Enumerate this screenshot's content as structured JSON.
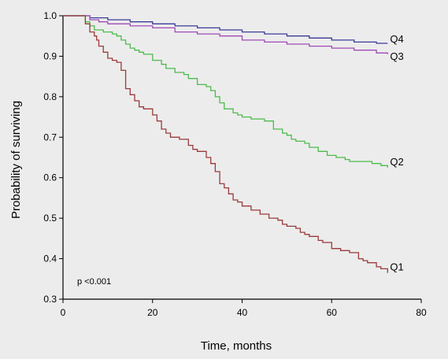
{
  "chart_data": {
    "type": "line",
    "step": true,
    "xlabel": "Time, months",
    "ylabel": "Probability of surviving",
    "xlim": [
      0,
      80
    ],
    "ylim": [
      0.3,
      1.0
    ],
    "xticks": [
      "0",
      "20",
      "40",
      "60",
      "80"
    ],
    "yticks": [
      "0.3",
      "0.4",
      "0.5",
      "0.6",
      "0.7",
      "0.8",
      "0.9",
      "1.0"
    ],
    "grid": false,
    "annotation": "p <0.001",
    "series": [
      {
        "name": "Q4",
        "color": "#3a3a9a",
        "points": [
          [
            0,
            1.0
          ],
          [
            4,
            1.0
          ],
          [
            6,
            0.995
          ],
          [
            10,
            0.99
          ],
          [
            15,
            0.985
          ],
          [
            20,
            0.98
          ],
          [
            25,
            0.975
          ],
          [
            30,
            0.97
          ],
          [
            35,
            0.965
          ],
          [
            40,
            0.96
          ],
          [
            45,
            0.955
          ],
          [
            50,
            0.95
          ],
          [
            55,
            0.945
          ],
          [
            60,
            0.94
          ],
          [
            65,
            0.935
          ],
          [
            70,
            0.932
          ],
          [
            72.5,
            0.932
          ]
        ]
      },
      {
        "name": "Q3",
        "color": "#a04ab8",
        "points": [
          [
            0,
            1.0
          ],
          [
            4,
            1.0
          ],
          [
            6,
            0.99
          ],
          [
            8,
            0.985
          ],
          [
            10,
            0.98
          ],
          [
            15,
            0.975
          ],
          [
            20,
            0.97
          ],
          [
            25,
            0.96
          ],
          [
            30,
            0.955
          ],
          [
            35,
            0.95
          ],
          [
            40,
            0.94
          ],
          [
            45,
            0.935
          ],
          [
            50,
            0.93
          ],
          [
            55,
            0.925
          ],
          [
            60,
            0.92
          ],
          [
            65,
            0.915
          ],
          [
            70,
            0.908
          ],
          [
            72.5,
            0.905
          ]
        ]
      },
      {
        "name": "Q2",
        "color": "#4dbb4d",
        "points": [
          [
            0,
            1.0
          ],
          [
            4,
            1.0
          ],
          [
            5,
            0.985
          ],
          [
            6,
            0.975
          ],
          [
            7,
            0.965
          ],
          [
            9,
            0.96
          ],
          [
            11,
            0.955
          ],
          [
            12,
            0.95
          ],
          [
            13,
            0.94
          ],
          [
            14,
            0.93
          ],
          [
            15,
            0.92
          ],
          [
            16,
            0.915
          ],
          [
            17,
            0.91
          ],
          [
            18,
            0.905
          ],
          [
            20,
            0.89
          ],
          [
            22,
            0.88
          ],
          [
            23,
            0.87
          ],
          [
            25,
            0.86
          ],
          [
            27,
            0.855
          ],
          [
            28,
            0.845
          ],
          [
            30,
            0.83
          ],
          [
            32,
            0.825
          ],
          [
            33,
            0.815
          ],
          [
            34,
            0.8
          ],
          [
            35,
            0.785
          ],
          [
            36,
            0.77
          ],
          [
            38,
            0.76
          ],
          [
            39,
            0.755
          ],
          [
            40,
            0.75
          ],
          [
            42,
            0.745
          ],
          [
            45,
            0.74
          ],
          [
            47,
            0.72
          ],
          [
            49,
            0.71
          ],
          [
            50,
            0.705
          ],
          [
            51,
            0.695
          ],
          [
            52,
            0.69
          ],
          [
            54,
            0.685
          ],
          [
            55,
            0.675
          ],
          [
            57,
            0.665
          ],
          [
            58,
            0.665
          ],
          [
            59,
            0.655
          ],
          [
            60,
            0.655
          ],
          [
            61,
            0.65
          ],
          [
            63,
            0.645
          ],
          [
            64,
            0.64
          ],
          [
            65,
            0.64
          ],
          [
            66,
            0.64
          ],
          [
            69,
            0.635
          ],
          [
            70,
            0.635
          ],
          [
            71,
            0.63
          ],
          [
            72.5,
            0.625
          ]
        ]
      },
      {
        "name": "Q1",
        "color": "#9a3a3a",
        "points": [
          [
            0,
            1.0
          ],
          [
            4,
            1.0
          ],
          [
            5,
            0.98
          ],
          [
            6,
            0.96
          ],
          [
            7,
            0.95
          ],
          [
            7.5,
            0.94
          ],
          [
            8,
            0.925
          ],
          [
            9,
            0.91
          ],
          [
            10,
            0.895
          ],
          [
            11,
            0.89
          ],
          [
            12,
            0.885
          ],
          [
            13,
            0.865
          ],
          [
            14,
            0.82
          ],
          [
            15,
            0.805
          ],
          [
            16,
            0.79
          ],
          [
            17,
            0.775
          ],
          [
            18,
            0.77
          ],
          [
            20,
            0.755
          ],
          [
            21,
            0.74
          ],
          [
            22,
            0.72
          ],
          [
            23,
            0.71
          ],
          [
            24,
            0.7
          ],
          [
            26,
            0.695
          ],
          [
            28,
            0.68
          ],
          [
            29,
            0.67
          ],
          [
            30,
            0.665
          ],
          [
            32,
            0.65
          ],
          [
            33,
            0.635
          ],
          [
            34,
            0.615
          ],
          [
            35,
            0.585
          ],
          [
            36,
            0.575
          ],
          [
            37,
            0.56
          ],
          [
            38,
            0.545
          ],
          [
            39,
            0.54
          ],
          [
            40,
            0.53
          ],
          [
            42,
            0.52
          ],
          [
            44,
            0.51
          ],
          [
            46,
            0.5
          ],
          [
            48,
            0.495
          ],
          [
            49,
            0.485
          ],
          [
            50,
            0.48
          ],
          [
            52,
            0.475
          ],
          [
            53,
            0.465
          ],
          [
            54,
            0.46
          ],
          [
            55,
            0.455
          ],
          [
            57,
            0.445
          ],
          [
            58,
            0.44
          ],
          [
            60,
            0.425
          ],
          [
            62,
            0.42
          ],
          [
            64,
            0.415
          ],
          [
            66,
            0.4
          ],
          [
            67,
            0.395
          ],
          [
            68,
            0.39
          ],
          [
            70,
            0.38
          ],
          [
            71,
            0.375
          ],
          [
            72.5,
            0.365
          ]
        ]
      }
    ]
  }
}
